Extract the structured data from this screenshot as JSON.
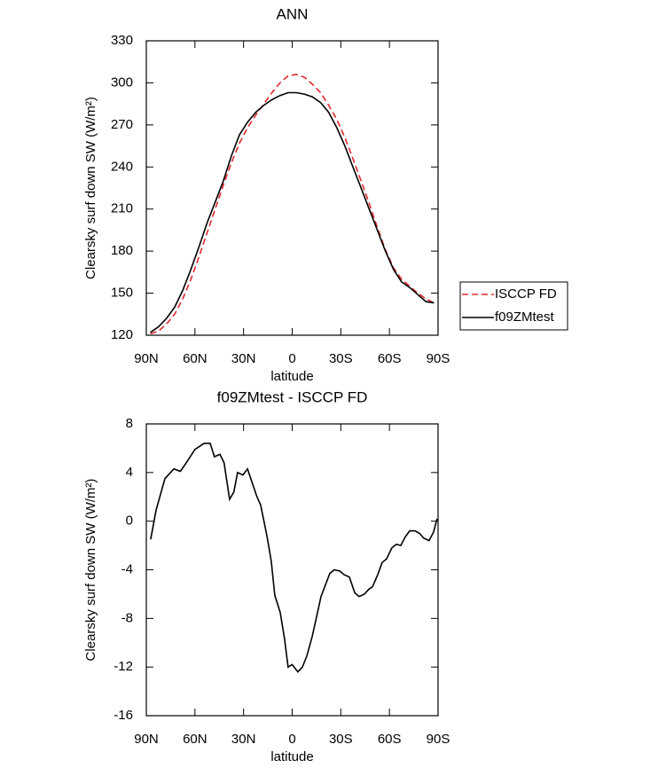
{
  "chart_data": [
    {
      "type": "line",
      "title": "ANN",
      "xlabel": "latitude",
      "ylabel": "Clearsky surf down SW (W/m²)",
      "x": [
        87.5,
        82.5,
        77.5,
        72.5,
        67.5,
        62.5,
        57.5,
        52.5,
        47.5,
        42.5,
        37.5,
        32.5,
        27.5,
        22.5,
        17.5,
        12.5,
        7.5,
        2.5,
        -2.5,
        -7.5,
        -12.5,
        -17.5,
        -22.5,
        -27.5,
        -32.5,
        -37.5,
        -42.5,
        -47.5,
        -52.5,
        -57.5,
        -62.5,
        -67.5,
        -72.5,
        -77.5,
        -82.5,
        -87.5
      ],
      "series": [
        {
          "name": "ISCCP FD",
          "color": "#e0282e",
          "dashed": true,
          "values": [
            121,
            123,
            128,
            135,
            146,
            160,
            176,
            193,
            210,
            227,
            243,
            257,
            268,
            277,
            285,
            293,
            300,
            305,
            306,
            304,
            299,
            293,
            284,
            274,
            261,
            246,
            230,
            214,
            197,
            181,
            168,
            160,
            155,
            150,
            146,
            143
          ]
        },
        {
          "name": "f09ZMtest",
          "color": "#000000",
          "dashed": false,
          "values": [
            122,
            126,
            132,
            140,
            152,
            167,
            183,
            200,
            215,
            230,
            248,
            263,
            272,
            279,
            284,
            288,
            291,
            293,
            293,
            292,
            290,
            286,
            279,
            268,
            255,
            240,
            225,
            210,
            195,
            180,
            167,
            158,
            154,
            149,
            144,
            143
          ]
        }
      ],
      "xlim": [
        90,
        -90
      ],
      "xticks": [
        {
          "value": 90,
          "label": "90N"
        },
        {
          "value": 60,
          "label": "60N"
        },
        {
          "value": 30,
          "label": "30N"
        },
        0,
        {
          "value": -30,
          "label": "30S"
        },
        {
          "value": -60,
          "label": "60S"
        },
        {
          "value": -90,
          "label": "90S"
        }
      ],
      "ylim": [
        120,
        330
      ],
      "yticks": [
        120,
        150,
        180,
        210,
        240,
        270,
        300,
        330
      ],
      "legend": "right"
    },
    {
      "type": "line",
      "title": "f09ZMtest - ISCCP FD",
      "xlabel": "latitude",
      "ylabel": "Clearsky surf down SW (W/m²)",
      "x": [
        87.3,
        84,
        78.5,
        73,
        69,
        65.4,
        60,
        54.4,
        50.6,
        48,
        44.6,
        42,
        38.6,
        36,
        33.7,
        30.4,
        27.6,
        22,
        19.4,
        15.6,
        12.9,
        10.7,
        7.4,
        4.7,
        2.5,
        0,
        -3.5,
        -6.3,
        -9,
        -12.3,
        -14.5,
        -17.8,
        -23.2,
        -26,
        -29.3,
        -32,
        -35.3,
        -38.6,
        -41.3,
        -44.6,
        -47.3,
        -49.5,
        -52.8,
        -55.5,
        -58.2,
        -61.5,
        -64.3,
        -67,
        -69.7,
        -72.5,
        -75.8,
        -78.5,
        -81.2,
        -84.5,
        -87.2,
        -89.4
      ],
      "series": [
        {
          "name": "f09ZMtest",
          "color": "#000000",
          "dashed": false,
          "values": [
            -1.5,
            0.9,
            3.5,
            4.3,
            4.1,
            4.8,
            5.9,
            6.4,
            6.4,
            5.3,
            5.5,
            4.8,
            1.8,
            2.4,
            4.0,
            3.8,
            4.3,
            2.1,
            1.3,
            -1.2,
            -3.3,
            -6.1,
            -7.5,
            -9.7,
            -12,
            -11.8,
            -12.4,
            -12,
            -11.1,
            -9.5,
            -8.2,
            -6.2,
            -4.3,
            -4,
            -4.1,
            -4.4,
            -4.6,
            -5.9,
            -6.2,
            -6,
            -5.6,
            -5.4,
            -4.4,
            -3.4,
            -3.1,
            -2.2,
            -1.9,
            -2,
            -1.3,
            -0.8,
            -0.8,
            -1.0,
            -1.4,
            -1.6,
            -0.9,
            0.2
          ]
        }
      ],
      "xlim": [
        90,
        -90
      ],
      "xticks": [
        {
          "value": 90,
          "label": "90N"
        },
        {
          "value": 60,
          "label": "60N"
        },
        {
          "value": 30,
          "label": "30N"
        },
        0,
        {
          "value": -30,
          "label": "30S"
        },
        {
          "value": -60,
          "label": "60S"
        },
        {
          "value": -90,
          "label": "90S"
        }
      ],
      "ylim": [
        -16,
        8
      ],
      "yticks": [
        -16,
        -12,
        -8,
        -4,
        0,
        4,
        8
      ]
    }
  ]
}
